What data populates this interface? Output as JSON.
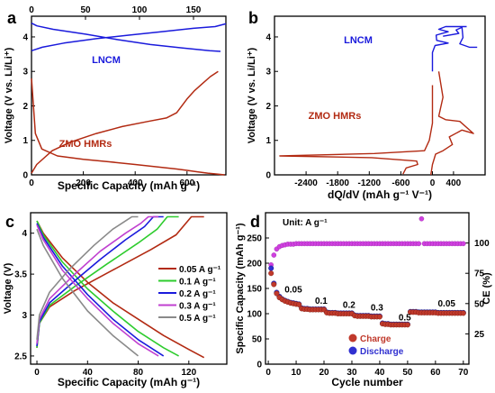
{
  "colors": {
    "lncm": "#1a1adc",
    "zmo": "#b22a12",
    "c_005": "#b22a12",
    "c_01": "#2ecc2e",
    "c_02": "#1a1adc",
    "c_03": "#c040d0",
    "c_05": "#8a8a8a",
    "charge_marker": "#c0392b",
    "discharge_marker": "#3030d0",
    "ce_marker": "#d040e0"
  },
  "chart_data": [
    {
      "panel": "a",
      "type": "line",
      "xlabel": "Specific Capacity (mAh g⁻¹)",
      "ylabel": "Voltage (V vs. Li/Li⁺)",
      "xlim": [
        0,
        750
      ],
      "ylim": [
        0,
        4.6
      ],
      "x_ticks": [
        0,
        200,
        400,
        600
      ],
      "y_ticks": [
        0,
        1,
        2,
        3,
        4
      ],
      "top_axis": {
        "xlim": [
          0,
          180
        ],
        "ticks": [
          0,
          50,
          100,
          150
        ]
      },
      "labels": [
        "LNCM",
        "ZMO HMRs"
      ],
      "series": [
        {
          "name": "LNCM",
          "axis": "top",
          "x": [
            0,
            5,
            20,
            50,
            80,
            110,
            140,
            165,
            175
          ],
          "y": [
            4.4,
            4.32,
            4.22,
            4.08,
            3.92,
            3.78,
            3.68,
            3.6,
            3.58
          ]
        },
        {
          "name": "LNCM",
          "axis": "top",
          "x": [
            0,
            10,
            30,
            60,
            90,
            120,
            150,
            170,
            180
          ],
          "y": [
            3.6,
            3.7,
            3.82,
            3.95,
            4.05,
            4.15,
            4.25,
            4.3,
            4.38
          ]
        },
        {
          "name": "ZMO HMRs",
          "axis": "bottom",
          "x": [
            0,
            15,
            40,
            100,
            200,
            300,
            400,
            500,
            560,
            600,
            640,
            680,
            720,
            745
          ],
          "y": [
            2.8,
            1.2,
            0.75,
            0.55,
            0.45,
            0.38,
            0.3,
            0.22,
            0.17,
            0.13,
            0.09,
            0.05,
            0.02,
            0.0
          ]
        },
        {
          "name": "ZMO HMRs",
          "axis": "bottom",
          "x": [
            0,
            20,
            80,
            150,
            250,
            350,
            450,
            520,
            560,
            600,
            630,
            660,
            690,
            720
          ],
          "y": [
            0.05,
            0.3,
            0.7,
            0.95,
            1.2,
            1.4,
            1.55,
            1.65,
            1.8,
            2.2,
            2.45,
            2.65,
            2.85,
            3.0
          ]
        }
      ]
    },
    {
      "panel": "b",
      "type": "line",
      "xlabel": "dQ/dV (mAh g⁻¹ V⁻¹)",
      "ylabel": "Voltage (V vs. Li/Li⁺)",
      "xlim": [
        -3000,
        1000
      ],
      "ylim": [
        0,
        4.6
      ],
      "x_ticks": [
        -2400,
        -1800,
        -1200,
        -600,
        0,
        400
      ],
      "y_ticks": [
        0,
        1,
        2,
        3,
        4
      ],
      "labels": [
        "LNCM",
        "ZMO HMRs"
      ],
      "series": [
        {
          "name": "ZMO HMRs",
          "x": [
            -560,
            -500,
            -280,
            -300,
            -1150,
            -2900,
            -1100,
            -150,
            -60,
            0,
            0,
            0
          ],
          "y": [
            0.02,
            0.2,
            0.3,
            0.4,
            0.5,
            0.55,
            0.62,
            0.7,
            1.0,
            1.5,
            2.0,
            2.6
          ]
        },
        {
          "name": "ZMO HMRs",
          "x": [
            -30,
            0,
            60,
            200,
            380,
            320,
            560,
            780,
            520,
            250,
            120,
            200,
            120
          ],
          "y": [
            0.0,
            0.3,
            0.6,
            0.7,
            0.88,
            1.1,
            1.3,
            1.2,
            1.55,
            1.6,
            1.7,
            2.25,
            3.0
          ]
        },
        {
          "name": "LNCM",
          "x": [
            0,
            0,
            50,
            300,
            80,
            70,
            300,
            120,
            250,
            650
          ],
          "y": [
            3.0,
            3.55,
            3.75,
            3.82,
            3.9,
            4.05,
            4.15,
            4.22,
            4.3,
            4.3
          ]
        },
        {
          "name": "LNCM",
          "x": [
            200,
            500,
            450,
            560,
            580,
            520,
            700,
            850
          ],
          "y": [
            4.02,
            4.1,
            4.2,
            4.28,
            3.98,
            3.8,
            3.7,
            3.7
          ]
        }
      ]
    },
    {
      "panel": "c",
      "type": "line",
      "xlabel": "Specific Capacity (mAh g⁻¹)",
      "ylabel": "Voltage (V)",
      "xlim": [
        -5,
        150
      ],
      "ylim": [
        2.4,
        4.25
      ],
      "x_ticks": [
        0,
        40,
        80,
        120
      ],
      "y_ticks": [
        2.5,
        3.0,
        3.5,
        4.0
      ],
      "legend": "right",
      "series": [
        {
          "name": "0.05 A g⁻¹",
          "charge": {
            "x": [
              0,
              2,
              10,
              30,
              60,
              90,
              110,
              122,
              132
            ],
            "y": [
              2.6,
              2.9,
              3.1,
              3.3,
              3.55,
              3.8,
              3.98,
              4.2,
              4.2
            ]
          },
          "discharge": {
            "x": [
              0,
              5,
              20,
              40,
              60,
              80,
              100,
              120,
              132
            ],
            "y": [
              4.15,
              4.0,
              3.7,
              3.4,
              3.15,
              2.95,
              2.75,
              2.58,
              2.48
            ]
          }
        },
        {
          "name": "0.1 A g⁻¹",
          "charge": {
            "x": [
              0,
              2,
              10,
              30,
              55,
              80,
              95,
              103,
              112
            ],
            "y": [
              2.6,
              2.9,
              3.12,
              3.35,
              3.62,
              3.88,
              4.05,
              4.2,
              4.2
            ]
          },
          "discharge": {
            "x": [
              0,
              5,
              20,
              40,
              60,
              80,
              100,
              112
            ],
            "y": [
              4.15,
              3.98,
              3.65,
              3.32,
              3.05,
              2.8,
              2.6,
              2.5
            ]
          }
        },
        {
          "name": "0.2 A g⁻¹",
          "charge": {
            "x": [
              0,
              2,
              10,
              30,
              50,
              70,
              85,
              92,
              100
            ],
            "y": [
              2.62,
              2.92,
              3.15,
              3.42,
              3.68,
              3.92,
              4.08,
              4.2,
              4.2
            ]
          },
          "discharge": {
            "x": [
              0,
              5,
              20,
              40,
              60,
              80,
              100
            ],
            "y": [
              4.12,
              3.95,
              3.6,
              3.25,
              2.95,
              2.7,
              2.5
            ]
          }
        },
        {
          "name": "0.3 A g⁻¹",
          "charge": {
            "x": [
              0,
              2,
              10,
              30,
              50,
              70,
              82,
              88,
              96
            ],
            "y": [
              2.65,
              2.95,
              3.2,
              3.5,
              3.78,
              4.0,
              4.12,
              4.2,
              4.2
            ]
          },
          "discharge": {
            "x": [
              0,
              5,
              20,
              40,
              60,
              80,
              96
            ],
            "y": [
              4.1,
              3.92,
              3.55,
              3.2,
              2.9,
              2.65,
              2.5
            ]
          }
        },
        {
          "name": "0.5 A g⁻¹",
          "charge": {
            "x": [
              0,
              2,
              10,
              25,
              45,
              60,
              70,
              75,
              80
            ],
            "y": [
              2.7,
              3.0,
              3.28,
              3.55,
              3.85,
              4.05,
              4.15,
              4.2,
              4.2
            ]
          },
          "discharge": {
            "x": [
              0,
              5,
              20,
              40,
              60,
              80
            ],
            "y": [
              4.05,
              3.85,
              3.45,
              3.05,
              2.75,
              2.5
            ]
          }
        }
      ]
    },
    {
      "panel": "d",
      "type": "scatter",
      "xlabel": "Cycle number",
      "ylabel": "Specific Capacity (mAh g⁻¹)",
      "ylabel_right": "CE (%)",
      "xlim": [
        -1,
        72
      ],
      "ylim": [
        0,
        300
      ],
      "ylim_right": [
        0,
        125
      ],
      "x_ticks": [
        0,
        10,
        20,
        30,
        40,
        50,
        60,
        70
      ],
      "y_ticks": [
        0,
        50,
        100,
        150,
        200,
        250
      ],
      "y_ticks_right": [
        25,
        50,
        75,
        100
      ],
      "unit_note": "Unit: A g⁻¹",
      "rate_labels": [
        {
          "text": "0.05",
          "cycle": 9,
          "capacity": 142
        },
        {
          "text": "0.1",
          "cycle": 19,
          "capacity": 120
        },
        {
          "text": "0.2",
          "cycle": 29,
          "capacity": 112
        },
        {
          "text": "0.3",
          "cycle": 39,
          "capacity": 106
        },
        {
          "text": "0.5",
          "cycle": 49,
          "capacity": 87
        },
        {
          "text": "0.05",
          "cycle": 64,
          "capacity": 114
        }
      ],
      "legend": [
        "Charge",
        "Discharge"
      ],
      "series": [
        {
          "name": "Charge",
          "values": [
            180,
            158,
            140,
            132,
            128,
            125,
            123,
            121,
            120,
            119,
            118,
            110,
            109,
            109,
            108,
            108,
            108,
            108,
            108,
            108,
            102,
            101,
            101,
            101,
            100,
            100,
            100,
            100,
            100,
            100,
            96,
            95,
            95,
            95,
            95,
            95,
            94,
            94,
            94,
            94,
            80,
            79,
            79,
            78,
            78,
            78,
            78,
            78,
            78,
            78,
            103,
            103,
            103,
            102,
            102,
            102,
            102,
            102,
            102,
            102,
            101,
            101,
            101,
            101,
            101,
            101,
            101,
            101,
            101,
            101
          ]
        },
        {
          "name": "Discharge",
          "values": [
            190,
            160,
            142,
            134,
            129,
            126,
            124,
            122,
            121,
            120,
            119,
            111,
            110,
            110,
            109,
            109,
            109,
            109,
            109,
            109,
            103,
            102,
            102,
            102,
            101,
            101,
            101,
            101,
            101,
            101,
            97,
            96,
            96,
            96,
            96,
            96,
            95,
            95,
            95,
            95,
            81,
            80,
            80,
            79,
            79,
            79,
            79,
            79,
            79,
            79,
            104,
            104,
            104,
            103,
            103,
            103,
            103,
            103,
            103,
            103,
            102,
            102,
            102,
            102,
            102,
            102,
            102,
            102,
            102,
            102
          ]
        },
        {
          "name": "CE",
          "axis": "right",
          "values": [
            82,
            90,
            95,
            97,
            98,
            98.5,
            99,
            99,
            99,
            99.5,
            99.5,
            99.5,
            99.5,
            99.5,
            99.5,
            99.5,
            99.5,
            99.5,
            99.5,
            99.5,
            99.5,
            99.5,
            99.5,
            99.5,
            99.5,
            99.5,
            99.5,
            99.5,
            99.5,
            99.5,
            99.5,
            99.5,
            99.5,
            99.5,
            99.5,
            99.5,
            99.5,
            99.5,
            99.5,
            99.5,
            99.5,
            99.5,
            99.5,
            99.5,
            99.5,
            99.5,
            99.5,
            99.5,
            99.5,
            99.5,
            99.5,
            99.5,
            99.5,
            99.5,
            120,
            99.5,
            99.5,
            99.5,
            99.5,
            99.5,
            99.5,
            99.5,
            99.5,
            99.5,
            99.5,
            99.5,
            99.5,
            99.5,
            99.5,
            99.5
          ]
        }
      ]
    }
  ]
}
